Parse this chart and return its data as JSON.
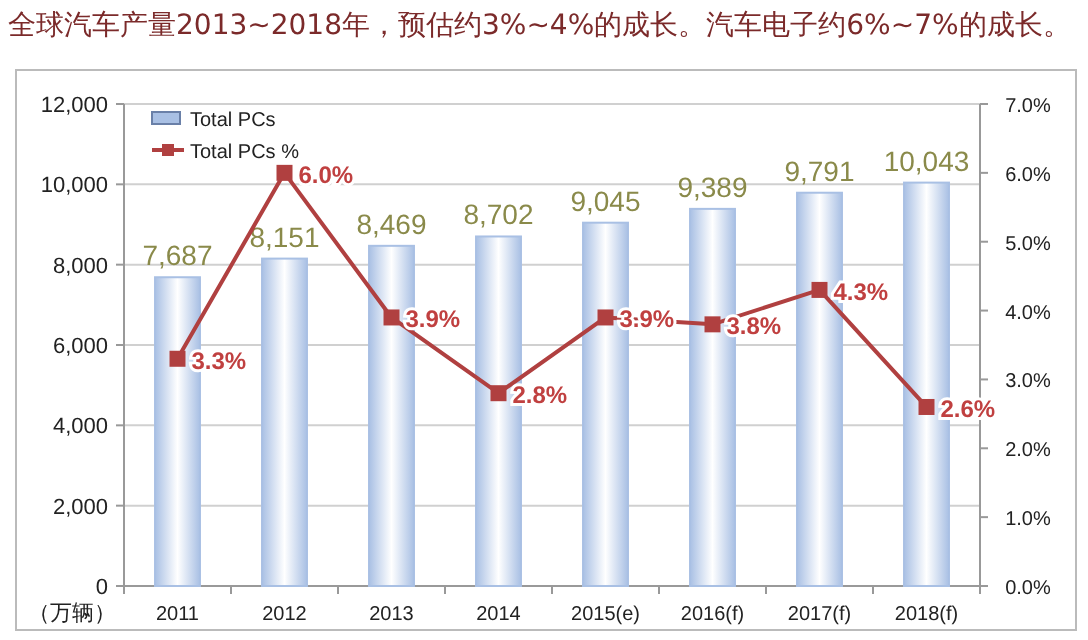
{
  "chart_data": {
    "type": "bar",
    "title": "全球汽车产量2013~2018年，预估约3%~4%的成长。汽车电子约6%~7%的成长。",
    "ylabel": "（万辆）",
    "categories": [
      "2011",
      "2012",
      "2013",
      "2014",
      "2015(e)",
      "2016(f)",
      "2017(f)",
      "2018(f)"
    ],
    "series": [
      {
        "name": "Total PCs",
        "color": "#a9c0e4",
        "values": [
          7687,
          8151,
          8469,
          8702,
          9045,
          9389,
          9791,
          10043
        ],
        "value_labels": [
          "7,687",
          "8,151",
          "8,469",
          "8,702",
          "9,045",
          "9,389",
          "9,791",
          "10,043"
        ]
      },
      {
        "name": "Total PCs %",
        "type": "line",
        "axis": "y2",
        "color": "#b04040",
        "marker": "square",
        "values": [
          3.3,
          6.0,
          3.9,
          2.8,
          3.9,
          3.8,
          4.3,
          2.6
        ],
        "value_labels": [
          "3.3%",
          "6.0%",
          "3.9%",
          "2.8%",
          "3.9%",
          "3.8%",
          "4.3%",
          "2.6%"
        ]
      }
    ],
    "ylim": [
      0,
      12000
    ],
    "yticks": [
      {
        "value": 0,
        "label": "0"
      },
      {
        "value": 2000,
        "label": "2,000"
      },
      {
        "value": 4000,
        "label": "4,000"
      },
      {
        "value": 6000,
        "label": "6,000"
      },
      {
        "value": 8000,
        "label": "8,000"
      },
      {
        "value": 10000,
        "label": "10,000"
      },
      {
        "value": 12000,
        "label": "12,000"
      }
    ],
    "y2lim": [
      0,
      7
    ],
    "y2ticks": [
      {
        "value": 0,
        "label": "0.0%"
      },
      {
        "value": 1,
        "label": "1.0%"
      },
      {
        "value": 2,
        "label": "2.0%"
      },
      {
        "value": 3,
        "label": "3.0%"
      },
      {
        "value": 4,
        "label": "4.0%"
      },
      {
        "value": 5,
        "label": "5.0%"
      },
      {
        "value": 6,
        "label": "6.0%"
      },
      {
        "value": 7,
        "label": "7.0%"
      }
    ],
    "grid": "y",
    "legend": "top left"
  }
}
